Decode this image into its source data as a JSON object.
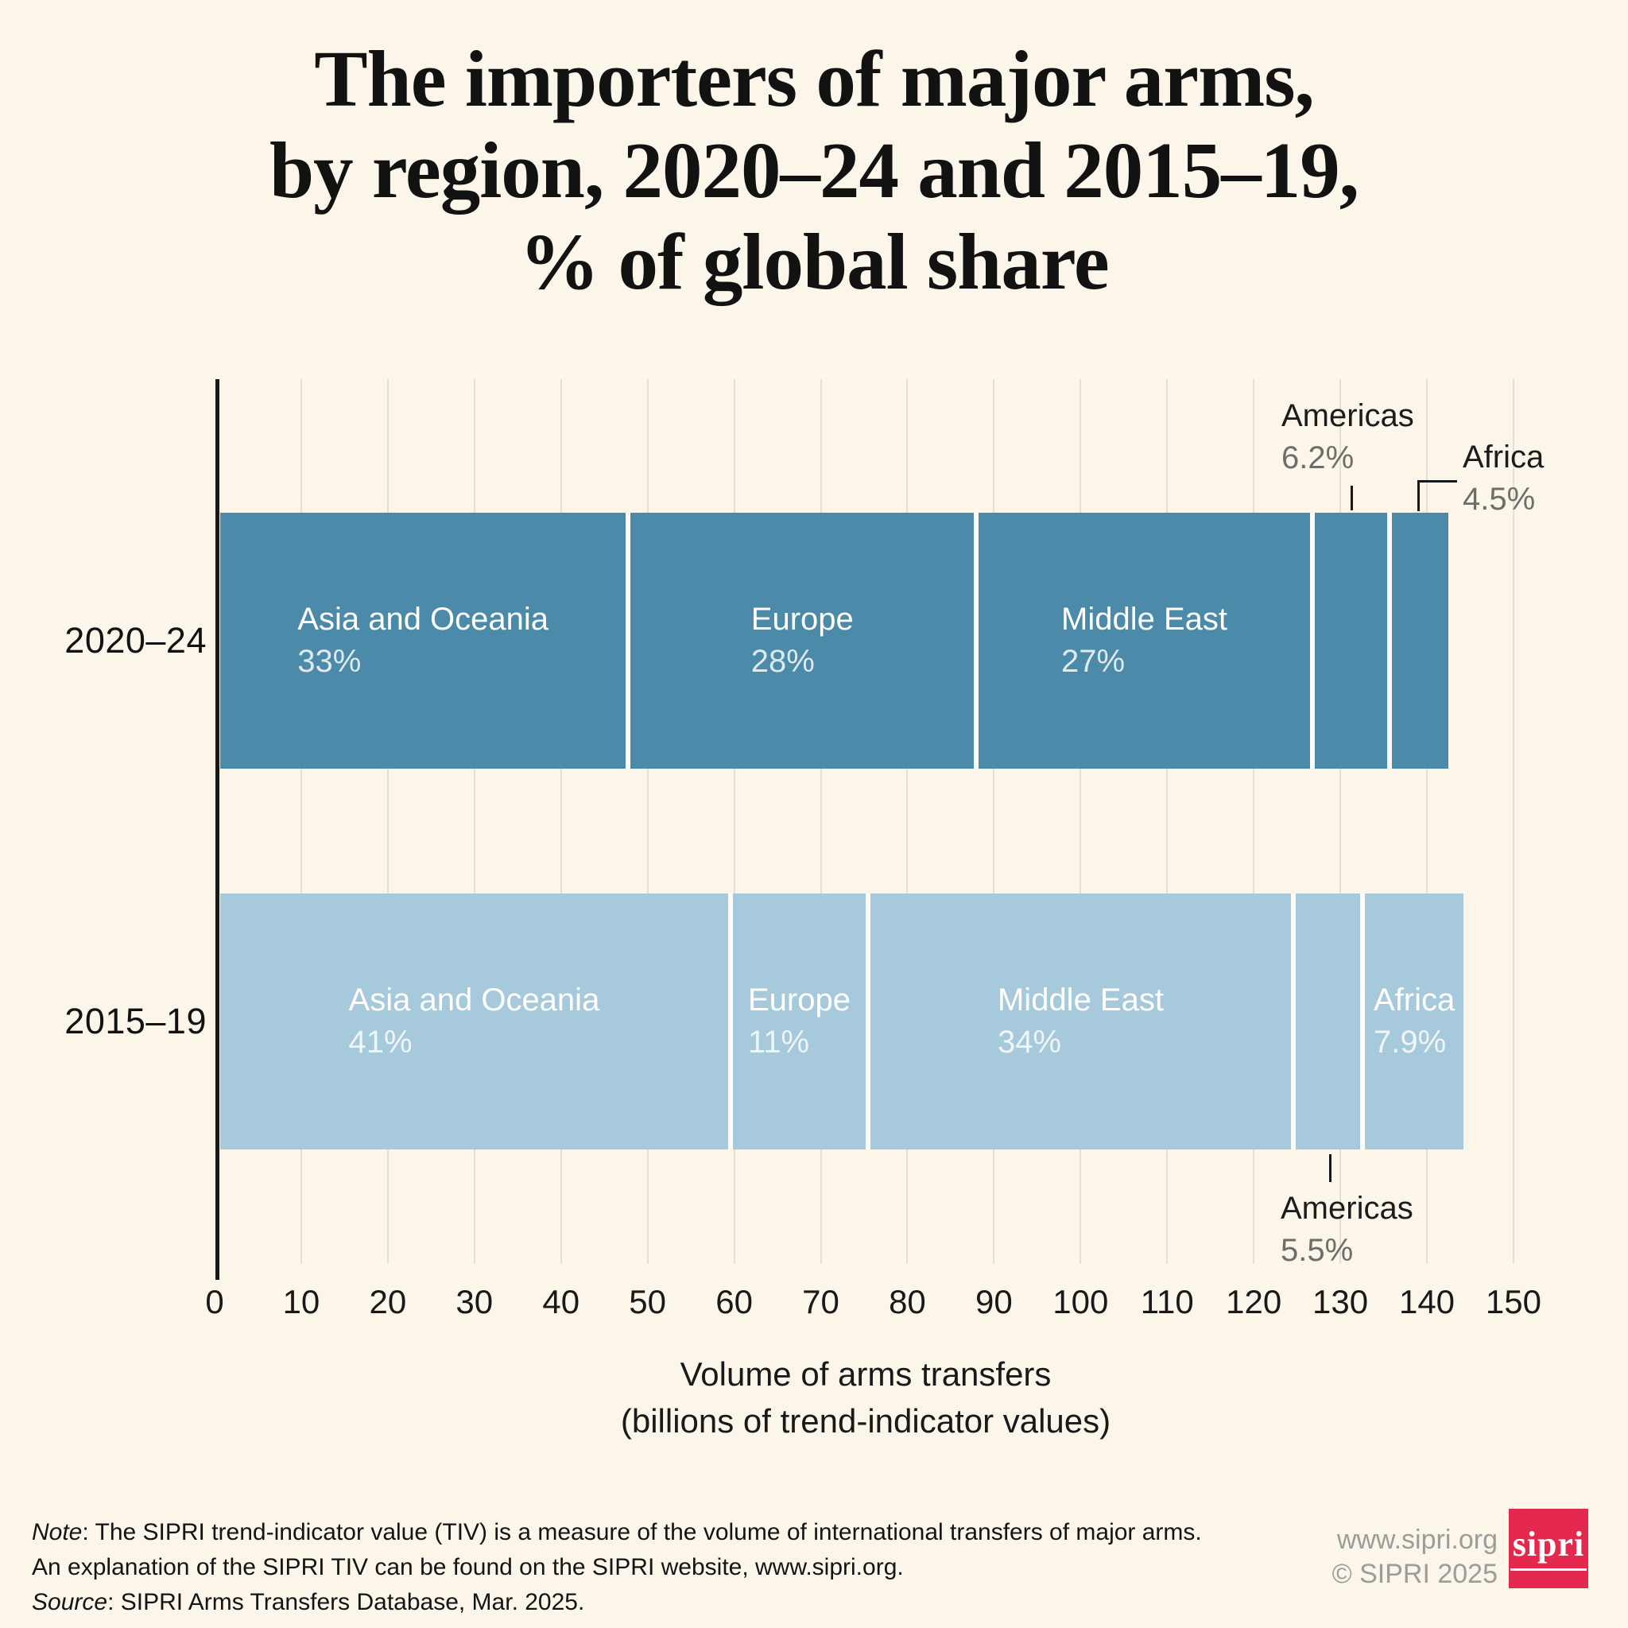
{
  "title_lines": [
    "The importers of major arms,",
    "by region, 2020–24 and 2015–19,",
    "% of global share"
  ],
  "axis": {
    "min": 0,
    "max": 150,
    "tick_step": 10,
    "tick_labels": [
      "0",
      "10",
      "20",
      "30",
      "40",
      "50",
      "60",
      "70",
      "80",
      "90",
      "100",
      "110",
      "120",
      "130",
      "140",
      "150"
    ],
    "label_line1": "Volume of arms transfers",
    "label_line2": "(billions of trend-indicator values)"
  },
  "bars": [
    {
      "period": "2020–24",
      "color": "#4B8AA8",
      "segments": [
        {
          "region": "Asia and Oceania",
          "pct": "33%",
          "tiv": 47.4,
          "label_inside": true
        },
        {
          "region": "Europe",
          "pct": "28%",
          "tiv": 40.2,
          "label_inside": true
        },
        {
          "region": "Middle East",
          "pct": "27%",
          "tiv": 38.8,
          "label_inside": true
        },
        {
          "region": "Americas",
          "pct": "6.2%",
          "tiv": 8.9,
          "label_inside": false
        },
        {
          "region": "Africa",
          "pct": "4.5%",
          "tiv": 6.5,
          "label_inside": false
        }
      ]
    },
    {
      "period": "2015–19",
      "color": "#A7C9DC",
      "segments": [
        {
          "region": "Asia and Oceania",
          "pct": "41%",
          "tiv": 59.2,
          "label_inside": true
        },
        {
          "region": "Europe",
          "pct": "11%",
          "tiv": 15.9,
          "label_inside": true
        },
        {
          "region": "Middle East",
          "pct": "34%",
          "tiv": 49.1,
          "label_inside": true
        },
        {
          "region": "Americas",
          "pct": "5.5%",
          "tiv": 8.0,
          "label_inside": false
        },
        {
          "region": "Africa",
          "pct": "7.9%",
          "tiv": 11.4,
          "label_inside": true
        }
      ]
    }
  ],
  "annotations": {
    "americas_top": {
      "region": "Americas",
      "pct": "6.2%"
    },
    "africa_top": {
      "region": "Africa",
      "pct": "4.5%"
    },
    "americas_bottom": {
      "region": "Americas",
      "pct": "5.5%"
    }
  },
  "footer": {
    "note_label": "Note",
    "note_rest": ": The SIPRI trend-indicator value (TIV) is a measure of the volume of international transfers of major arms.",
    "line2": "An explanation of the SIPRI TIV can be found on the SIPRI website, www.sipri.org.",
    "source_label": "Source",
    "source_rest": ": SIPRI Arms Transfers Database, Mar. 2025."
  },
  "credit": {
    "url": "www.sipri.org",
    "copyright": "© SIPRI 2025",
    "logo_text": "sipri"
  },
  "chart_data": {
    "type": "bar",
    "orientation": "horizontal-stacked",
    "title": "The importers of major arms, by region, 2020–24 and 2015–19, % of global share",
    "categories": [
      "2020–24",
      "2015–19"
    ],
    "series": [
      {
        "name": "Asia and Oceania",
        "share_pct": [
          33,
          41
        ],
        "tiv_billions_est": [
          47.4,
          59.2
        ]
      },
      {
        "name": "Europe",
        "share_pct": [
          28,
          11
        ],
        "tiv_billions_est": [
          40.2,
          15.9
        ]
      },
      {
        "name": "Middle East",
        "share_pct": [
          27,
          34
        ],
        "tiv_billions_est": [
          38.8,
          49.1
        ]
      },
      {
        "name": "Americas",
        "share_pct": [
          6.2,
          5.5
        ],
        "tiv_billions_est": [
          8.9,
          8.0
        ]
      },
      {
        "name": "Africa",
        "share_pct": [
          4.5,
          7.9
        ],
        "tiv_billions_est": [
          6.5,
          11.4
        ]
      }
    ],
    "bar_total_tiv_est": [
      141.8,
      143.6
    ],
    "xlabel": "Volume of arms transfers (billions of trend-indicator values)",
    "xlim": [
      0,
      150
    ],
    "grid": true,
    "legend_position": "labels-inside-bars",
    "colors": {
      "2020-24": "#4B8AA8",
      "2015-19": "#A7C9DC",
      "background": "#FBF5EA"
    }
  }
}
